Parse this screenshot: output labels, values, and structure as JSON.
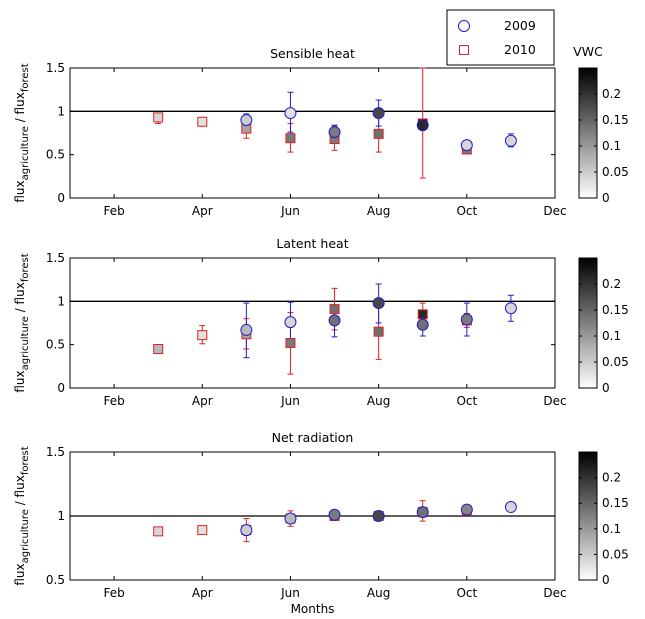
{
  "chart_data": [
    {
      "type": "scatter",
      "title": "Sensible heat",
      "ylabel_main": "flux",
      "ylabel_sub1": "agriculture",
      "ylabel_mid": " / flux",
      "ylabel_sub2": "forest",
      "xlabel": "",
      "xlim": [
        1,
        12
      ],
      "ylim": [
        0,
        1.5
      ],
      "xticks": [
        {
          "v": 2,
          "l": "Feb"
        },
        {
          "v": 4,
          "l": "Apr"
        },
        {
          "v": 6,
          "l": "Jun"
        },
        {
          "v": 8,
          "l": "Aug"
        },
        {
          "v": 10,
          "l": "Oct"
        },
        {
          "v": 12,
          "l": "Dec"
        }
      ],
      "yticks": [
        {
          "v": 0,
          "l": "0"
        },
        {
          "v": 0.5,
          "l": "0.5"
        },
        {
          "v": 1,
          "l": "1"
        },
        {
          "v": 1.5,
          "l": "1.5"
        }
      ],
      "reference_line": 1,
      "series": [
        {
          "name": "2009",
          "marker": "circle",
          "color": "#1f1fcc",
          "points": [
            {
              "x": 5.0,
              "y": 0.9,
              "lo": 0.83,
              "hi": 0.97,
              "vwc": 0.05
            },
            {
              "x": 6.0,
              "y": 0.98,
              "lo": 0.76,
              "hi": 1.22,
              "vwc": 0.03
            },
            {
              "x": 7.0,
              "y": 0.76,
              "lo": 0.67,
              "hi": 0.84,
              "vwc": 0.13
            },
            {
              "x": 8.0,
              "y": 0.98,
              "lo": 0.83,
              "hi": 1.13,
              "vwc": 0.18
            },
            {
              "x": 9.0,
              "y": 0.84,
              "lo": 0.8,
              "hi": 0.88,
              "vwc": 0.21
            },
            {
              "x": 10.0,
              "y": 0.61,
              "lo": 0.57,
              "hi": 0.65,
              "vwc": 0.04
            },
            {
              "x": 11.0,
              "y": 0.66,
              "lo": 0.59,
              "hi": 0.74,
              "vwc": 0.04
            }
          ]
        },
        {
          "name": "2010",
          "marker": "square",
          "color": "#dd2222",
          "points": [
            {
              "x": 3.0,
              "y": 0.93,
              "lo": 0.86,
              "hi": 0.98,
              "vwc": 0.04
            },
            {
              "x": 4.0,
              "y": 0.88,
              "lo": 0.83,
              "hi": 0.93,
              "vwc": 0.03
            },
            {
              "x": 5.0,
              "y": 0.8,
              "lo": 0.69,
              "hi": 0.9,
              "vwc": 0.09
            },
            {
              "x": 6.0,
              "y": 0.69,
              "lo": 0.53,
              "hi": 0.86,
              "vwc": 0.13
            },
            {
              "x": 7.0,
              "y": 0.68,
              "lo": 0.55,
              "hi": 0.83,
              "vwc": 0.13
            },
            {
              "x": 8.0,
              "y": 0.74,
              "lo": 0.53,
              "hi": 0.95,
              "vwc": 0.14
            },
            {
              "x": 9.0,
              "y": 0.86,
              "lo": 0.23,
              "hi": 1.5,
              "vwc": 0.23
            },
            {
              "x": 10.0,
              "y": 0.56,
              "lo": 0.51,
              "hi": 0.61,
              "vwc": 0.13
            }
          ]
        }
      ],
      "colorbar": {
        "label": "VWC",
        "range": [
          0,
          0.25
        ],
        "ticks": [
          {
            "v": 0,
            "l": "0"
          },
          {
            "v": 0.05,
            "l": "0.05"
          },
          {
            "v": 0.1,
            "l": "0.1"
          },
          {
            "v": 0.15,
            "l": "0.15"
          },
          {
            "v": 0.2,
            "l": "0.2"
          }
        ]
      },
      "legend": {
        "placement": "top-right",
        "entries": [
          "2009",
          "2010"
        ]
      }
    },
    {
      "type": "scatter",
      "title": "Latent heat",
      "ylabel_main": "flux",
      "ylabel_sub1": "agriculture",
      "ylabel_mid": " / flux",
      "ylabel_sub2": "forest",
      "xlabel": "",
      "xlim": [
        1,
        12
      ],
      "ylim": [
        0,
        1.5
      ],
      "xticks": [
        {
          "v": 2,
          "l": "Feb"
        },
        {
          "v": 4,
          "l": "Apr"
        },
        {
          "v": 6,
          "l": "Jun"
        },
        {
          "v": 8,
          "l": "Aug"
        },
        {
          "v": 10,
          "l": "Oct"
        },
        {
          "v": 12,
          "l": "Dec"
        }
      ],
      "yticks": [
        {
          "v": 0,
          "l": "0"
        },
        {
          "v": 0.5,
          "l": "0.5"
        },
        {
          "v": 1,
          "l": "1"
        },
        {
          "v": 1.5,
          "l": "1.5"
        }
      ],
      "reference_line": 1,
      "series": [
        {
          "name": "2009",
          "marker": "circle",
          "color": "#1f1fcc",
          "points": [
            {
              "x": 5.0,
              "y": 0.67,
              "lo": 0.35,
              "hi": 0.98,
              "vwc": 0.07
            },
            {
              "x": 6.0,
              "y": 0.76,
              "lo": 0.54,
              "hi": 0.99,
              "vwc": 0.04
            },
            {
              "x": 7.0,
              "y": 0.78,
              "lo": 0.59,
              "hi": 0.96,
              "vwc": 0.14
            },
            {
              "x": 8.0,
              "y": 0.98,
              "lo": 0.75,
              "hi": 1.2,
              "vwc": 0.18
            },
            {
              "x": 9.0,
              "y": 0.73,
              "lo": 0.6,
              "hi": 0.86,
              "vwc": 0.14
            },
            {
              "x": 10.0,
              "y": 0.79,
              "lo": 0.6,
              "hi": 0.98,
              "vwc": 0.13
            },
            {
              "x": 11.0,
              "y": 0.92,
              "lo": 0.77,
              "hi": 1.07,
              "vwc": 0.04
            }
          ]
        },
        {
          "name": "2010",
          "marker": "square",
          "color": "#dd2222",
          "points": [
            {
              "x": 3.0,
              "y": 0.45,
              "lo": 0.42,
              "hi": 0.48,
              "vwc": 0.07
            },
            {
              "x": 4.0,
              "y": 0.61,
              "lo": 0.51,
              "hi": 0.72,
              "vwc": 0.03
            },
            {
              "x": 5.0,
              "y": 0.62,
              "lo": 0.45,
              "hi": 0.8,
              "vwc": 0.09
            },
            {
              "x": 6.0,
              "y": 0.52,
              "lo": 0.16,
              "hi": 0.87,
              "vwc": 0.13
            },
            {
              "x": 7.0,
              "y": 0.91,
              "lo": 0.67,
              "hi": 1.15,
              "vwc": 0.14
            },
            {
              "x": 8.0,
              "y": 0.65,
              "lo": 0.33,
              "hi": 0.97,
              "vwc": 0.14
            },
            {
              "x": 9.0,
              "y": 0.85,
              "lo": 0.73,
              "hi": 0.98,
              "vwc": 0.21
            },
            {
              "x": 10.0,
              "y": 0.78,
              "lo": 0.7,
              "hi": 0.86,
              "vwc": 0.13
            }
          ]
        }
      ],
      "colorbar": {
        "label": "",
        "range": [
          0,
          0.25
        ],
        "ticks": [
          {
            "v": 0,
            "l": "0"
          },
          {
            "v": 0.05,
            "l": "0.05"
          },
          {
            "v": 0.1,
            "l": "0.1"
          },
          {
            "v": 0.15,
            "l": "0.15"
          },
          {
            "v": 0.2,
            "l": "0.2"
          }
        ]
      }
    },
    {
      "type": "scatter",
      "title": "Net radiation",
      "ylabel_main": "flux",
      "ylabel_sub1": "agriculture",
      "ylabel_mid": " / flux",
      "ylabel_sub2": "forest",
      "xlabel": "Months",
      "xlim": [
        1,
        12
      ],
      "ylim": [
        0.5,
        1.5
      ],
      "xticks": [
        {
          "v": 2,
          "l": "Feb"
        },
        {
          "v": 4,
          "l": "Apr"
        },
        {
          "v": 6,
          "l": "Jun"
        },
        {
          "v": 8,
          "l": "Aug"
        },
        {
          "v": 10,
          "l": "Oct"
        },
        {
          "v": 12,
          "l": "Dec"
        }
      ],
      "yticks": [
        {
          "v": 0.5,
          "l": "0.5"
        },
        {
          "v": 1,
          "l": "1"
        },
        {
          "v": 1.5,
          "l": "1.5"
        }
      ],
      "reference_line": 1,
      "series": [
        {
          "name": "2009",
          "marker": "circle",
          "color": "#1f1fcc",
          "points": [
            {
              "x": 5.0,
              "y": 0.89,
              "lo": 0.85,
              "hi": 0.93,
              "vwc": 0.05
            },
            {
              "x": 6.0,
              "y": 0.98,
              "lo": 0.95,
              "hi": 1.01,
              "vwc": 0.07
            },
            {
              "x": 7.0,
              "y": 1.01,
              "lo": 0.98,
              "hi": 1.04,
              "vwc": 0.13
            },
            {
              "x": 8.0,
              "y": 1.0,
              "lo": 0.98,
              "hi": 1.02,
              "vwc": 0.18
            },
            {
              "x": 9.0,
              "y": 1.03,
              "lo": 1.0,
              "hi": 1.06,
              "vwc": 0.14
            },
            {
              "x": 10.0,
              "y": 1.05,
              "lo": 1.03,
              "hi": 1.07,
              "vwc": 0.12
            },
            {
              "x": 11.0,
              "y": 1.07,
              "lo": 1.06,
              "hi": 1.08,
              "vwc": 0.04
            }
          ]
        },
        {
          "name": "2010",
          "marker": "square",
          "color": "#dd2222",
          "points": [
            {
              "x": 3.0,
              "y": 0.88,
              "lo": 0.87,
              "hi": 0.89,
              "vwc": 0.04
            },
            {
              "x": 4.0,
              "y": 0.89,
              "lo": 0.88,
              "hi": 0.9,
              "vwc": 0.03
            },
            {
              "x": 5.0,
              "y": 0.89,
              "lo": 0.8,
              "hi": 0.98,
              "vwc": 0.09
            },
            {
              "x": 6.0,
              "y": 0.98,
              "lo": 0.92,
              "hi": 1.04,
              "vwc": 0.13
            },
            {
              "x": 7.0,
              "y": 1.0,
              "lo": 0.97,
              "hi": 1.04,
              "vwc": 0.14
            },
            {
              "x": 8.0,
              "y": 1.0,
              "lo": 0.98,
              "hi": 1.02,
              "vwc": 0.18
            },
            {
              "x": 9.0,
              "y": 1.03,
              "lo": 0.96,
              "hi": 1.12,
              "vwc": 0.14
            },
            {
              "x": 10.0,
              "y": 1.04,
              "lo": 1.02,
              "hi": 1.06,
              "vwc": 0.13
            }
          ]
        }
      ],
      "colorbar": {
        "label": "",
        "range": [
          0,
          0.25
        ],
        "ticks": [
          {
            "v": 0,
            "l": "0"
          },
          {
            "v": 0.05,
            "l": "0.05"
          },
          {
            "v": 0.1,
            "l": "0.1"
          },
          {
            "v": 0.15,
            "l": "0.15"
          },
          {
            "v": 0.2,
            "l": "0.2"
          }
        ]
      }
    }
  ]
}
